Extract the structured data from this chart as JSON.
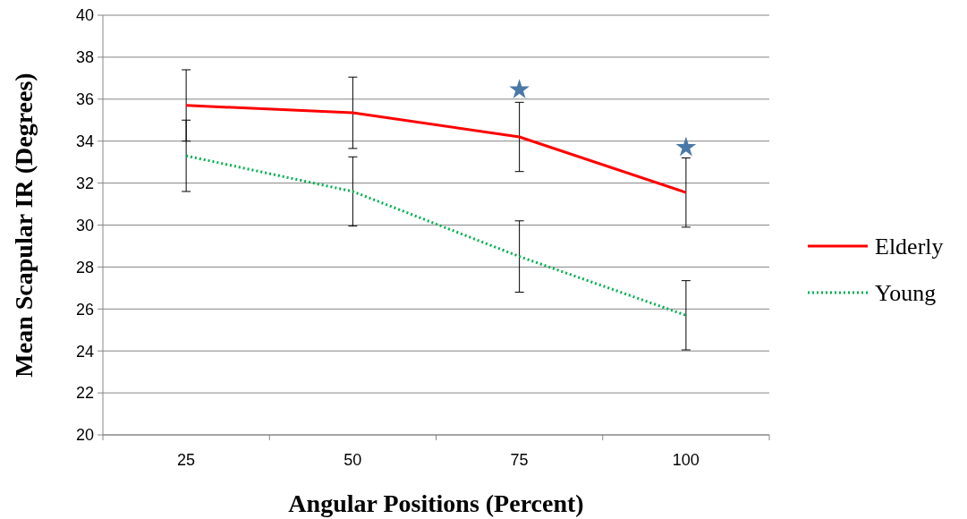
{
  "chart_data": {
    "type": "line",
    "xlabel": "Angular Positions (Percent)",
    "ylabel": "Mean Scapular IR (Degrees)",
    "categories": [
      "25",
      "50",
      "75",
      "100"
    ],
    "series": [
      {
        "name": "Elderly",
        "color": "#ff0000",
        "values": [
          35.7,
          35.35,
          34.2,
          31.55
        ],
        "errors": [
          1.7,
          1.7,
          1.65,
          1.65
        ],
        "line_style": "solid"
      },
      {
        "name": "Young",
        "color": "#00b050",
        "values": [
          33.3,
          31.6,
          28.5,
          25.7
        ],
        "errors": [
          1.7,
          1.65,
          1.7,
          1.65
        ],
        "line_style": "dotted"
      },
      {
        "type": "scatter",
        "color": "#4a78a8",
        "marker": "star",
        "values": [
          null,
          null,
          36.45,
          33.7
        ]
      }
    ],
    "ylim": [
      20,
      40
    ],
    "yticks": [
      20,
      22,
      24,
      26,
      28,
      30,
      32,
      34,
      36,
      38,
      40
    ],
    "grid": "y",
    "legend": "right",
    "marker": "none"
  }
}
